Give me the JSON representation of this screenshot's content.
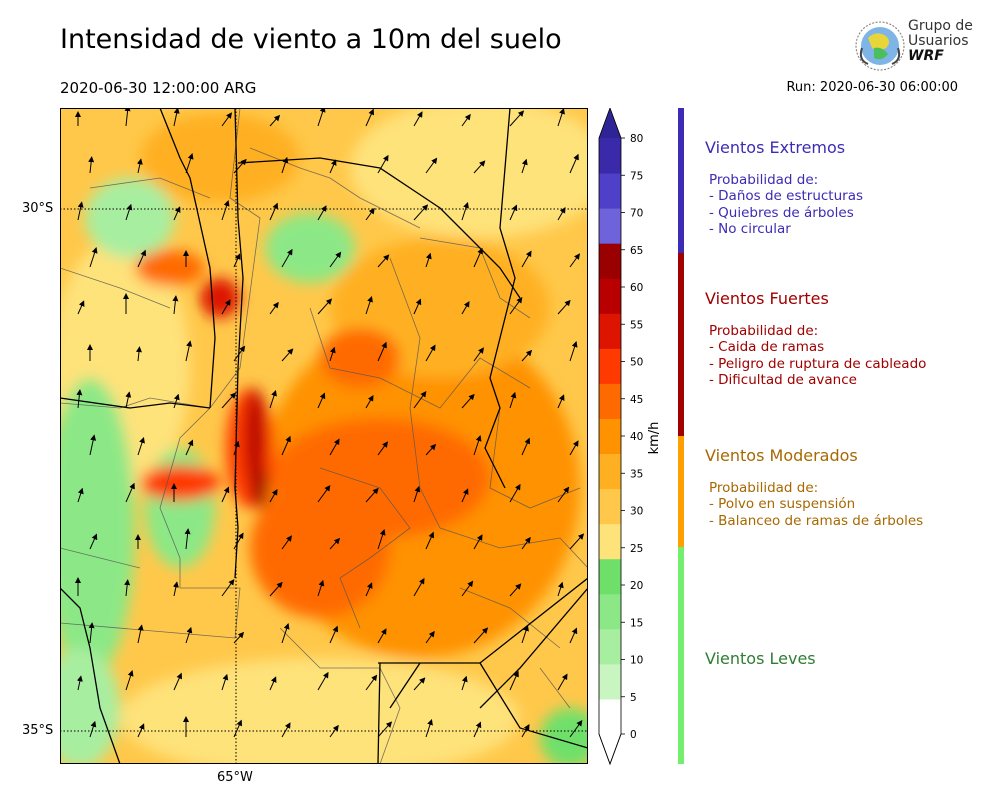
{
  "title": "Intensidad de viento a 10m del suelo",
  "valid_time": "2020-06-30 12:00:00 ARG",
  "run_time": "Run: 2020-06-30 06:00:00",
  "logo": {
    "line1": "Grupo de",
    "line2": "Usuarios",
    "line3": "WRF"
  },
  "map": {
    "lat_labels": [
      "30°S",
      "35°S"
    ],
    "lon_labels": [
      "65°W"
    ]
  },
  "colorbar": {
    "unit": "km/h",
    "ticks": [
      "0",
      "5",
      "10",
      "15",
      "20",
      "25",
      "30",
      "35",
      "40",
      "45",
      "50",
      "55",
      "60",
      "65",
      "70",
      "75",
      "80"
    ],
    "colors": [
      "#ffffff",
      "#c8f5c0",
      "#a8eea0",
      "#8ce886",
      "#6ee06a",
      "#fee27a",
      "#ffc84a",
      "#ffb022",
      "#ff9200",
      "#ff6a00",
      "#ff3a00",
      "#dd1500",
      "#b80000",
      "#9a0000",
      "#6f63db",
      "#4e40c8",
      "#3a2aaa"
    ],
    "overflow_color": "#2f2496",
    "underflow_color": "#ffffff"
  },
  "legend": {
    "categories": [
      {
        "name": "Vientos Extremos",
        "color": "#3d2bb5",
        "lines": [
          "Probabilidad de:",
          "- Daños de estructuras",
          "- Quiebres de árboles",
          "- No circular"
        ]
      },
      {
        "name": "Vientos Fuertes",
        "color": "#a00000",
        "lines": [
          "Probabilidad de:",
          "- Caida de ramas",
          "- Peligro de ruptura de cableado",
          "- Dificultad de avance"
        ]
      },
      {
        "name": "Vientos Moderados",
        "color": "#a76800",
        "lines": [
          "Probabilidad de:",
          "- Polvo en suspensión",
          "- Balanceo de ramas de árboles"
        ]
      },
      {
        "name": "Vientos Leves",
        "color": "#2e7d32",
        "lines": []
      }
    ],
    "bar_colors": [
      "#3d2bb5",
      "#a00000",
      "#ff9f00",
      "#74ee6c"
    ]
  }
}
